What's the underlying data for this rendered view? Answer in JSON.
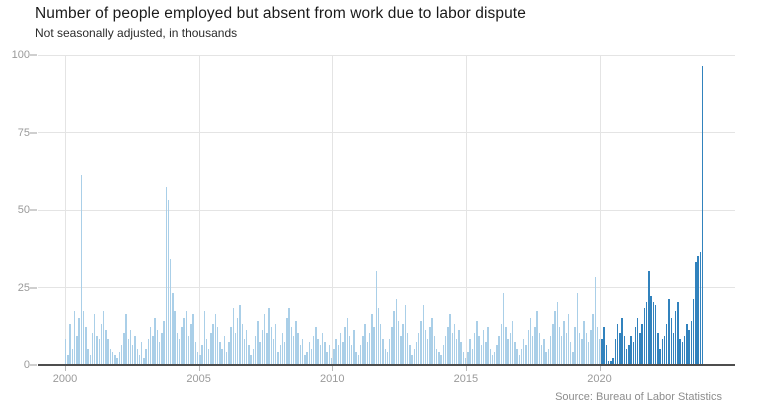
{
  "header": {
    "title": "Number of people employed but absent from work due to labor dispute",
    "subtitle": "Not seasonally adjusted, in thousands"
  },
  "footer": {
    "source": "Source: Bureau of Labor Statistics"
  },
  "colors": {
    "bar_light": "#aacfe8",
    "bar_dark": "#3182bd",
    "grid": "#e4e4e4",
    "axis": "#4d4d4d",
    "tick_label": "#9a9a9a"
  },
  "chart_data": {
    "type": "bar",
    "title": "Number of people employed but absent from work due to labor dispute",
    "subtitle": "Not seasonally adjusted, in thousands",
    "ylabel": "thousands",
    "xlabel": "",
    "frequency": "monthly",
    "start": "2000-01",
    "end": "2023-10",
    "ylim": [
      0,
      100
    ],
    "y_ticks": [
      0,
      25,
      50,
      75,
      100
    ],
    "x_ticks": [
      2000,
      2005,
      2010,
      2015,
      2020
    ],
    "grid": true,
    "legend": "none",
    "dark_from_index": 240,
    "dark_from_label": "2020-01",
    "values": [
      8,
      3,
      13,
      5,
      17,
      9,
      15,
      61,
      17,
      12,
      5,
      3,
      10,
      16,
      9,
      8,
      13,
      17,
      11,
      8,
      5,
      4,
      3,
      2,
      4,
      6,
      10,
      16,
      8,
      11,
      6,
      9,
      5,
      3,
      7,
      2,
      5,
      8,
      12,
      9,
      15,
      11,
      7,
      10,
      14,
      57,
      53,
      34,
      23,
      17,
      10,
      8,
      12,
      15,
      17,
      9,
      13,
      16,
      7,
      4,
      3,
      6,
      17,
      8,
      5,
      10,
      13,
      16,
      12,
      7,
      5,
      9,
      4,
      7,
      12,
      18,
      10,
      15,
      19,
      13,
      8,
      11,
      6,
      3,
      5,
      9,
      14,
      7,
      11,
      16,
      10,
      18,
      12,
      8,
      13,
      4,
      6,
      10,
      7,
      15,
      18,
      12,
      9,
      14,
      10,
      6,
      8,
      3,
      4,
      7,
      5,
      9,
      12,
      8,
      6,
      10,
      7,
      4,
      6,
      2,
      5,
      8,
      6,
      10,
      7,
      12,
      15,
      9,
      6,
      11,
      4,
      3,
      6,
      9,
      13,
      7,
      10,
      16,
      12,
      30,
      18,
      13,
      8,
      5,
      4,
      8,
      12,
      17,
      21,
      14,
      9,
      13,
      19,
      10,
      6,
      3,
      5,
      7,
      10,
      14,
      19,
      11,
      8,
      12,
      15,
      9,
      5,
      4,
      3,
      6,
      9,
      12,
      16,
      10,
      13,
      8,
      11,
      7,
      4,
      2,
      4,
      8,
      5,
      10,
      14,
      9,
      6,
      11,
      7,
      12,
      5,
      3,
      4,
      6,
      9,
      13,
      23,
      12,
      8,
      10,
      14,
      7,
      5,
      3,
      5,
      8,
      6,
      11,
      15,
      9,
      12,
      17,
      10,
      6,
      8,
      4,
      5,
      9,
      13,
      17,
      20,
      12,
      9,
      14,
      10,
      16,
      7,
      4,
      12,
      23,
      10,
      8,
      14,
      10,
      7,
      11,
      16,
      28,
      12,
      8,
      8,
      12,
      6,
      1,
      1,
      2,
      8,
      13,
      10,
      15,
      9,
      5,
      6,
      9,
      7,
      12,
      15,
      10,
      13,
      18,
      20,
      30,
      22,
      20,
      19,
      10,
      5,
      8,
      9,
      13,
      21,
      15,
      10,
      17,
      20,
      8,
      7,
      9,
      13,
      11,
      14,
      21,
      33,
      35,
      36,
      96
    ]
  }
}
